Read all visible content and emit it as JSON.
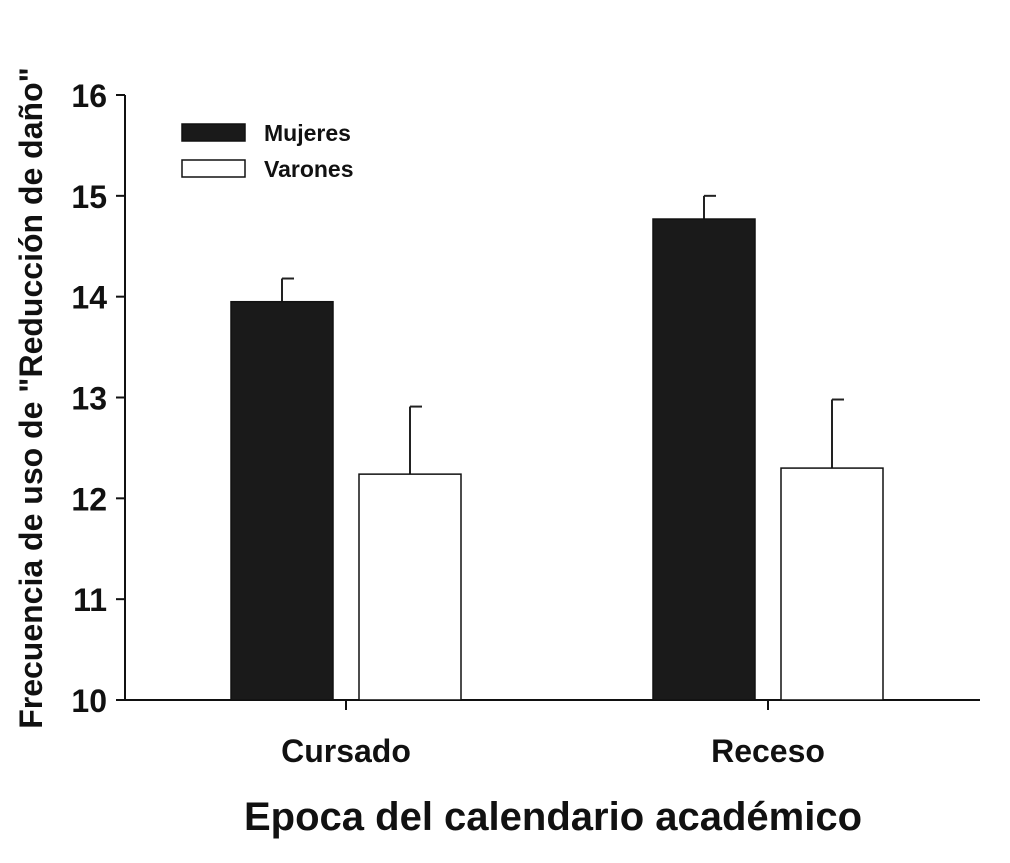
{
  "chart_data": {
    "type": "bar",
    "title": "",
    "xlabel": "Epoca del calendario académico",
    "ylabel": "Frecuencia de uso de \"Reducción de daño\"",
    "categories": [
      "Cursado",
      "Receso"
    ],
    "series": [
      {
        "name": "Mujeres",
        "values": [
          13.95,
          14.77
        ],
        "errors": [
          0.23,
          0.23
        ],
        "color": "#1a1a1a"
      },
      {
        "name": "Varones",
        "values": [
          12.24,
          12.3
        ],
        "errors": [
          0.67,
          0.68
        ],
        "color": "#ffffff"
      }
    ],
    "ylim": [
      10,
      16
    ],
    "yticks": [
      "10",
      "11",
      "12",
      "13",
      "14",
      "15",
      "16"
    ],
    "grid": false,
    "legend_position": "top-left"
  }
}
